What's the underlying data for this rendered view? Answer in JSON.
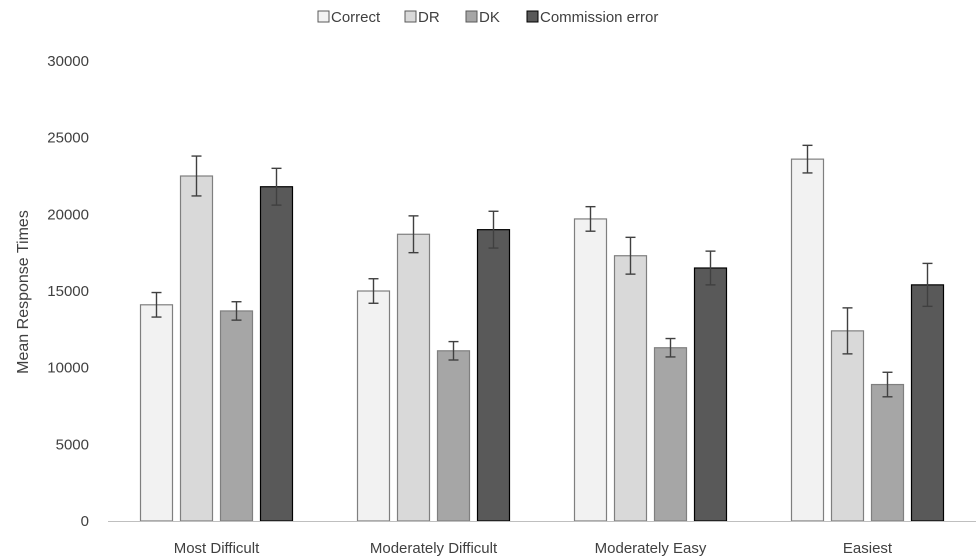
{
  "chart_data": {
    "type": "bar",
    "title": "",
    "xlabel": "",
    "ylabel": "Mean Response Times",
    "ylim": [
      0,
      30000
    ],
    "yticks": [
      0,
      5000,
      10000,
      15000,
      20000,
      25000,
      30000
    ],
    "grid": false,
    "legend_position": "top",
    "categories": [
      "Most Difficult",
      "Moderately Difficult",
      "Moderately Easy",
      "Easiest"
    ],
    "series": [
      {
        "name": "Correct",
        "color": "#f2f2f2",
        "values": [
          14100,
          15000,
          19700,
          23600
        ],
        "errors": [
          800,
          800,
          800,
          900
        ]
      },
      {
        "name": "DR",
        "color": "#d9d9d9",
        "values": [
          22500,
          18700,
          17300,
          12400
        ],
        "errors": [
          1300,
          1200,
          1200,
          1500
        ]
      },
      {
        "name": "DK",
        "color": "#a6a6a6",
        "values": [
          13700,
          11100,
          11300,
          8900
        ],
        "errors": [
          600,
          600,
          600,
          800
        ]
      },
      {
        "name": "Commission error",
        "color": "#595959",
        "values": [
          21800,
          19000,
          16500,
          15400
        ],
        "errors": [
          1200,
          1200,
          1100,
          1400
        ]
      }
    ]
  }
}
